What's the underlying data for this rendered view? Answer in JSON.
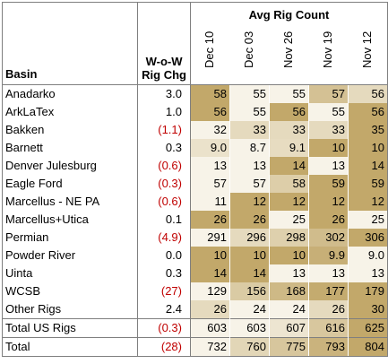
{
  "header": {
    "group_label": "Avg Rig Count",
    "basin_label": "Basin",
    "chg_label_line1": "W-o-W",
    "chg_label_line2": "Rig Chg"
  },
  "chart_data": {
    "type": "table",
    "columns": [
      "Dec 10",
      "Dec 03",
      "Nov 26",
      "Nov 19",
      "Nov 12"
    ],
    "rows": [
      {
        "basin": "Anadarko",
        "chg": "3.0",
        "values": [
          "58",
          "55",
          "55",
          "57",
          "56"
        ]
      },
      {
        "basin": "ArkLaTex",
        "chg": "1.0",
        "values": [
          "56",
          "55",
          "56",
          "55",
          "56"
        ]
      },
      {
        "basin": "Bakken",
        "chg": "(1.1)",
        "values": [
          "32",
          "33",
          "33",
          "33",
          "35"
        ]
      },
      {
        "basin": "Barnett",
        "chg": "0.3",
        "values": [
          "9.0",
          "8.7",
          "9.1",
          "10",
          "10"
        ]
      },
      {
        "basin": "Denver Julesburg",
        "chg": "(0.6)",
        "values": [
          "13",
          "13",
          "14",
          "13",
          "14"
        ]
      },
      {
        "basin": "Eagle Ford",
        "chg": "(0.3)",
        "values": [
          "57",
          "57",
          "58",
          "59",
          "59"
        ]
      },
      {
        "basin": "Marcellus - NE PA",
        "chg": "(0.6)",
        "values": [
          "11",
          "12",
          "12",
          "12",
          "12"
        ]
      },
      {
        "basin": "Marcellus+Utica",
        "chg": "0.1",
        "values": [
          "26",
          "26",
          "25",
          "26",
          "25"
        ]
      },
      {
        "basin": "Permian",
        "chg": "(4.9)",
        "values": [
          "291",
          "296",
          "298",
          "302",
          "306"
        ]
      },
      {
        "basin": "Powder River",
        "chg": "0.0",
        "values": [
          "10",
          "10",
          "10",
          "9.9",
          "9.0"
        ]
      },
      {
        "basin": "Uinta",
        "chg": "0.3",
        "values": [
          "14",
          "14",
          "13",
          "13",
          "13"
        ]
      },
      {
        "basin": "WCSB",
        "chg": "(27)",
        "values": [
          "129",
          "156",
          "168",
          "177",
          "179"
        ]
      },
      {
        "basin": "Other Rigs",
        "chg": "2.4",
        "values": [
          "26",
          "24",
          "24",
          "26",
          "30"
        ]
      },
      {
        "basin": "Total US Rigs",
        "chg": "(0.3)",
        "values": [
          "603",
          "603",
          "607",
          "616",
          "625"
        ]
      },
      {
        "basin": "Total",
        "chg": "(28)",
        "values": [
          "732",
          "760",
          "775",
          "793",
          "804"
        ]
      }
    ]
  },
  "colors": {
    "negative": "#c00000",
    "heat_low": "#f7f3e8",
    "heat_high": "#c2a86a"
  }
}
